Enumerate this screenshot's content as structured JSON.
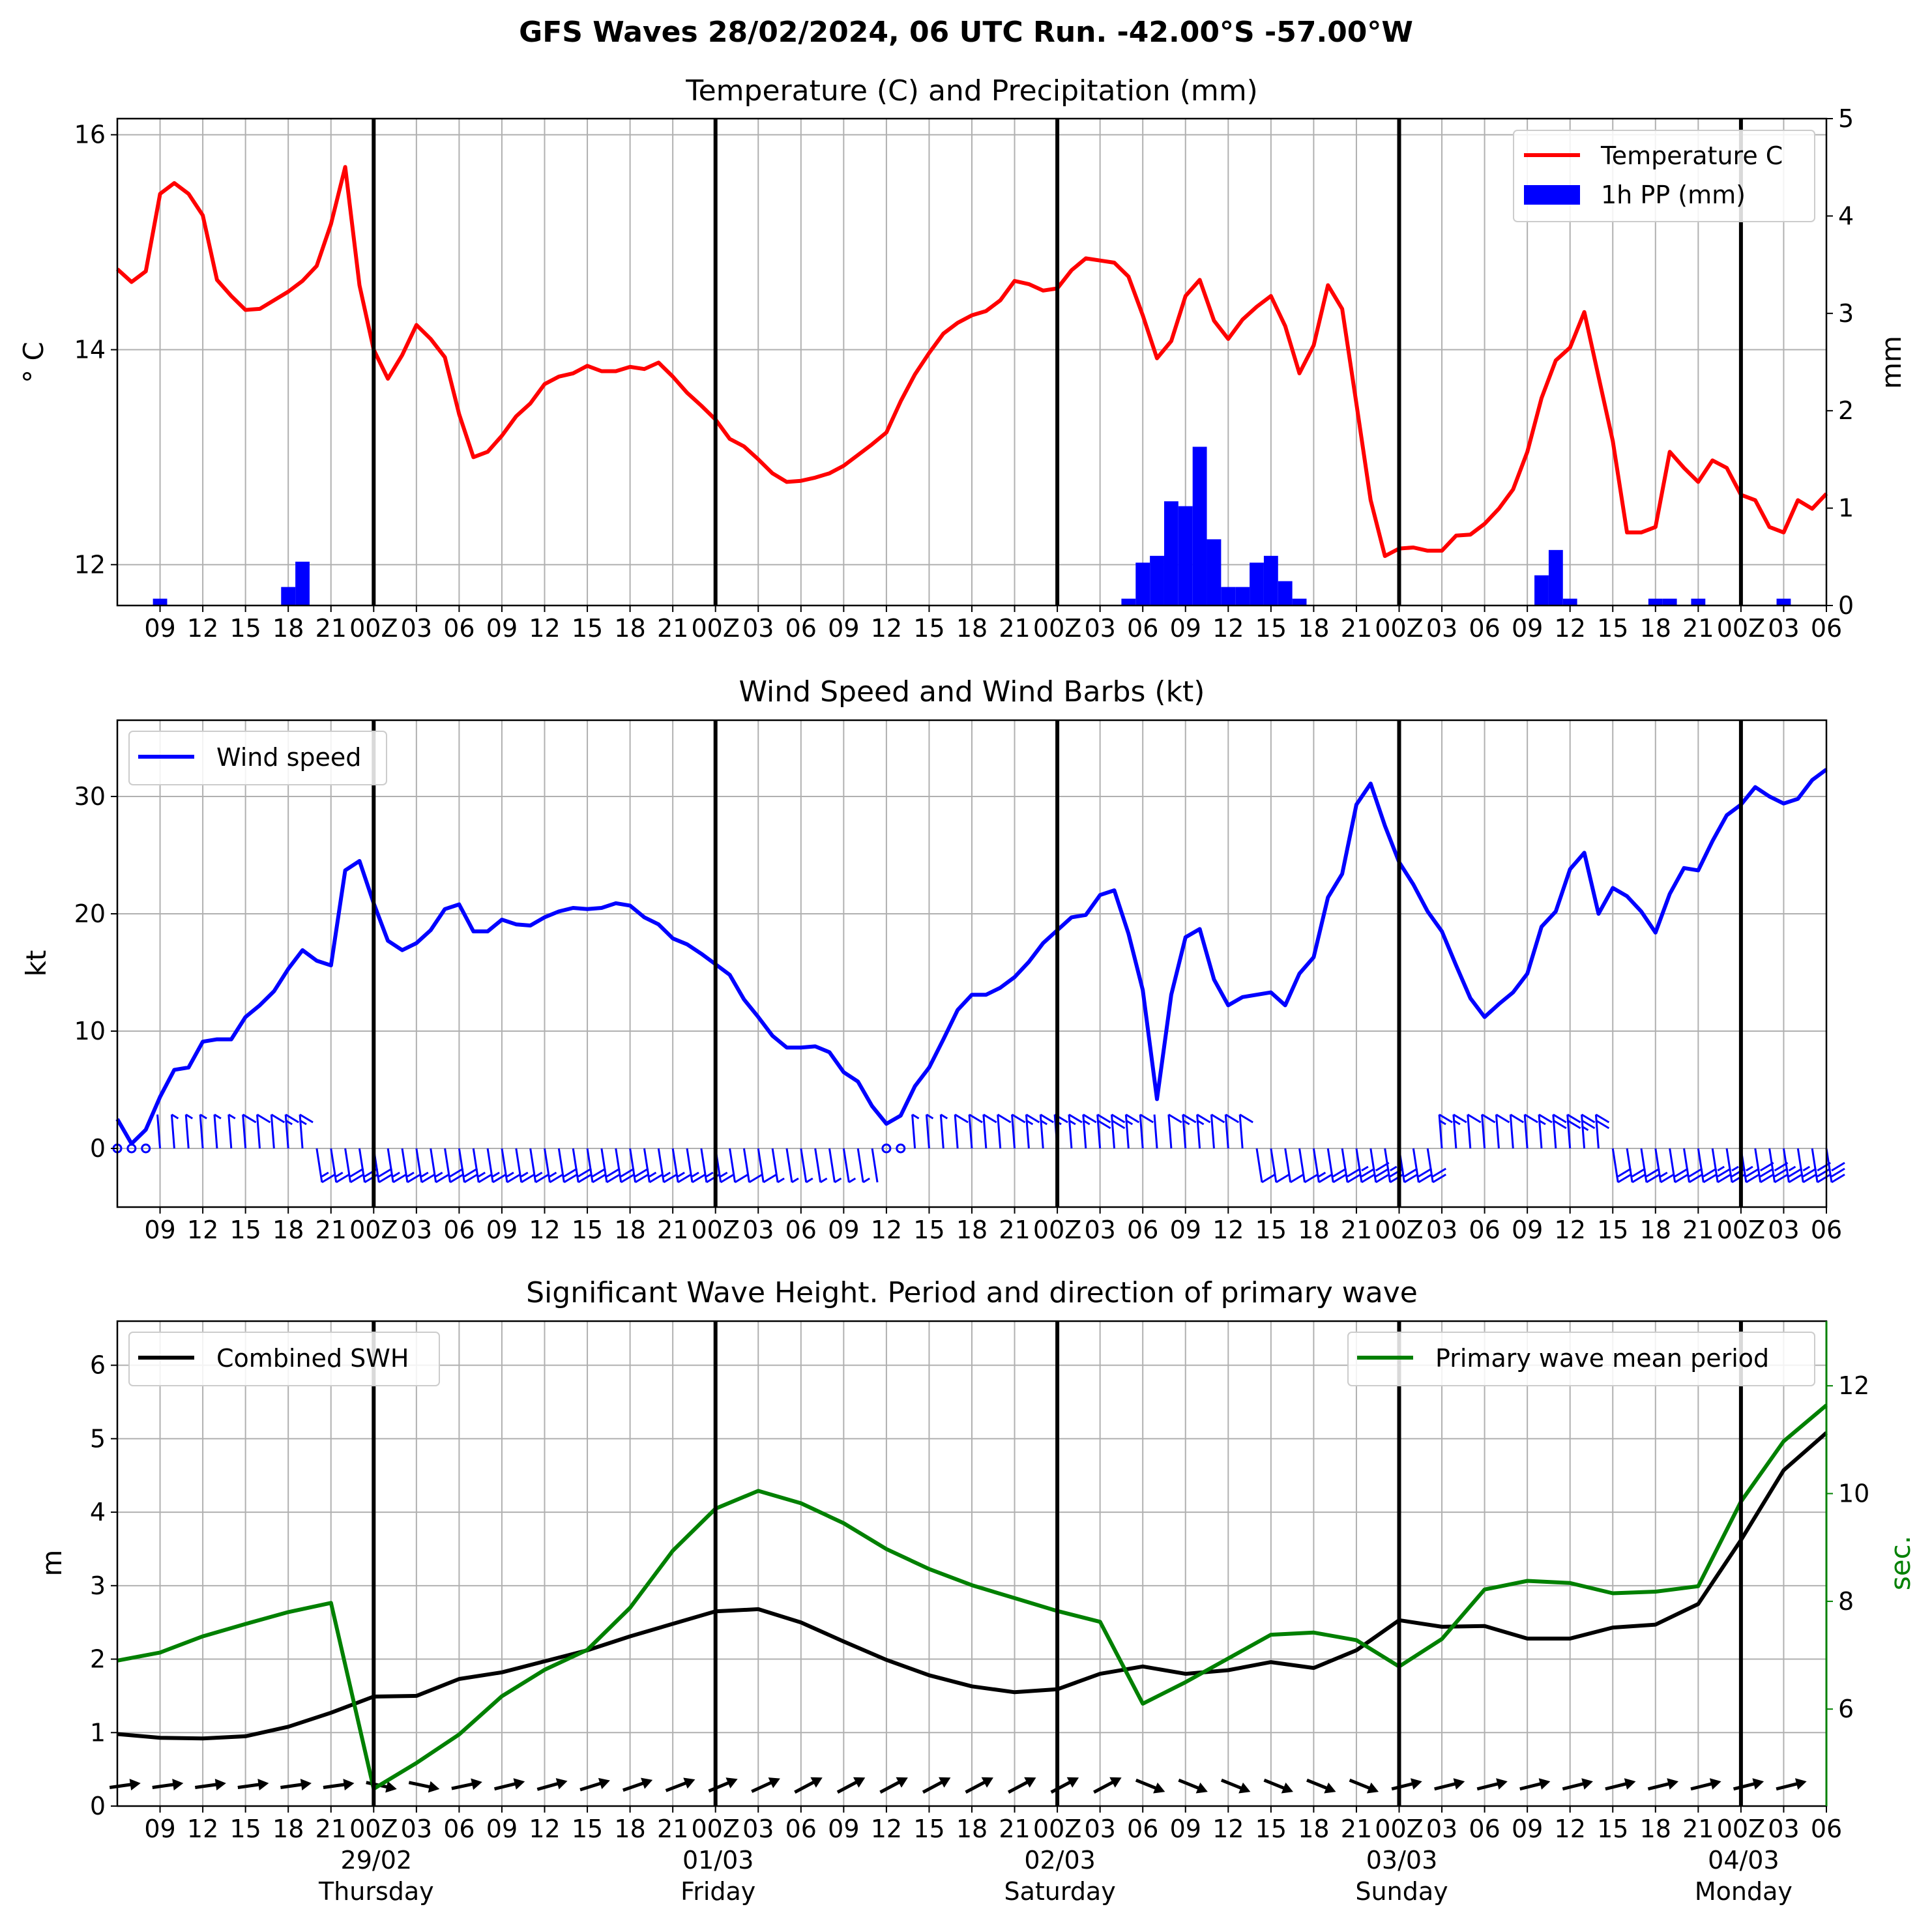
{
  "figure": {
    "title": "GFS Waves 28/02/2024, 06 UTC Run. -42.00°S -57.00°W"
  },
  "x_axis": {
    "tick_labels": [
      "09",
      "12",
      "15",
      "18",
      "21",
      "00Z",
      "03",
      "06",
      "09",
      "12",
      "15",
      "18",
      "21",
      "00Z",
      "03",
      "06",
      "09",
      "12",
      "15",
      "18",
      "21",
      "00Z",
      "03",
      "06",
      "09",
      "12",
      "15",
      "18",
      "21",
      "00Z",
      "03",
      "06",
      "09",
      "12",
      "15",
      "18",
      "21",
      "00Z",
      "03",
      "06"
    ],
    "day_dates": [
      "29/02",
      "01/03",
      "02/03",
      "03/03",
      "04/03"
    ],
    "day_names": [
      "Thursday",
      "Friday",
      "Saturday",
      "Sunday",
      "Monday"
    ]
  },
  "chart_data": [
    {
      "type": "line",
      "title": "Temperature (C) and Precipitation (mm)",
      "xlabel": "",
      "ylabel": "° C",
      "ylabel_right": "mm",
      "x_unit": "hours since 28/02/2024 06 UTC",
      "ylim": [
        11.62,
        16.15
      ],
      "ylim_right": [
        0,
        5
      ],
      "yticks": [
        12,
        14,
        16
      ],
      "yticks_right": [
        0,
        1,
        2,
        3,
        4,
        5
      ],
      "grid": true,
      "legend": "top-right",
      "series": [
        {
          "name": "Temperature C",
          "color": "#ff0000",
          "axis": "left",
          "x": [
            0,
            1,
            2,
            3,
            4,
            5,
            6,
            7,
            8,
            9,
            10,
            11,
            12,
            13,
            14,
            15,
            16,
            17,
            18,
            19,
            20,
            21,
            22,
            23,
            24,
            25,
            26,
            27,
            28,
            29,
            30,
            31,
            32,
            33,
            34,
            35,
            36,
            37,
            38,
            39,
            40,
            41,
            42,
            43,
            44,
            45,
            46,
            47,
            48,
            49,
            50,
            51,
            52,
            53,
            54,
            55,
            56,
            57,
            58,
            59,
            60,
            61,
            62,
            63,
            64,
            65,
            66,
            67,
            68,
            69,
            70,
            71,
            72,
            73,
            74,
            75,
            76,
            77,
            78,
            79,
            80,
            81,
            82,
            83,
            84,
            85,
            86,
            87,
            88,
            89,
            90,
            91,
            92,
            93,
            94,
            95,
            96,
            97,
            98,
            99,
            100,
            101,
            102,
            103,
            104,
            105,
            106,
            107,
            108,
            109,
            110,
            111,
            112,
            113,
            114,
            115,
            116,
            117,
            118,
            119,
            120
          ],
          "values": [
            14.75,
            14.63,
            14.73,
            15.45,
            15.55,
            15.45,
            15.25,
            14.65,
            14.5,
            14.37,
            14.38,
            14.46,
            14.54,
            14.64,
            14.78,
            15.17,
            15.7,
            14.6,
            14.0,
            13.73,
            13.95,
            14.23,
            14.1,
            13.93,
            13.4,
            13.0,
            13.05,
            13.2,
            13.38,
            13.5,
            13.68,
            13.75,
            13.78,
            13.85,
            13.8,
            13.8,
            13.84,
            13.82,
            13.88,
            13.75,
            13.6,
            13.48,
            13.35,
            13.17,
            13.1,
            12.98,
            12.85,
            12.77,
            12.78,
            12.81,
            12.85,
            12.92,
            13.02,
            13.12,
            13.23,
            13.52,
            13.77,
            13.97,
            14.15,
            14.25,
            14.32,
            14.36,
            14.46,
            14.64,
            14.61,
            14.55,
            14.57,
            14.74,
            14.85,
            14.83,
            14.81,
            14.68,
            14.32,
            13.92,
            14.08,
            14.5,
            14.65,
            14.27,
            14.1,
            14.28,
            14.4,
            14.5,
            14.22,
            13.78,
            14.04,
            14.6,
            14.38,
            13.5,
            12.6,
            12.08,
            12.15,
            12.16,
            12.13,
            12.13,
            12.27,
            12.28,
            12.38,
            12.52,
            12.7,
            13.05,
            13.55,
            13.9,
            14.02,
            14.35,
            13.75,
            13.15,
            12.3,
            12.3,
            12.35,
            13.05,
            12.9,
            12.77,
            12.97,
            12.9,
            12.65,
            12.6,
            12.35,
            12.3,
            12.6,
            12.52,
            12.66
          ]
        },
        {
          "name": "1h PP (mm)",
          "color": "#0000ff",
          "axis": "right",
          "type": "bar",
          "x": [
            3,
            12,
            13,
            71,
            72,
            73,
            74,
            75,
            76,
            77,
            78,
            79,
            80,
            81,
            82,
            83,
            84,
            85,
            100,
            101,
            102,
            108,
            109,
            111,
            117
          ],
          "values": [
            0.07,
            0.19,
            0.45,
            0.07,
            0.44,
            0.51,
            1.07,
            1.02,
            1.63,
            0.68,
            0.19,
            0.19,
            0.44,
            0.51,
            0.25,
            0.07,
            0.0,
            0.0,
            0.31,
            0.57,
            0.07,
            0.07,
            0.07,
            0.07,
            0.07
          ]
        }
      ]
    },
    {
      "type": "line",
      "title": "Wind Speed and Wind Barbs (kt)",
      "xlabel": "",
      "ylabel": "kt",
      "x_unit": "hours since 28/02/2024 06 UTC",
      "ylim": [
        -5,
        36.5
      ],
      "yticks": [
        0,
        10,
        20,
        30
      ],
      "grid": true,
      "legend": "top-left",
      "series": [
        {
          "name": "Wind speed",
          "color": "#0000ff",
          "x": [
            0,
            1,
            2,
            3,
            4,
            5,
            6,
            7,
            8,
            9,
            10,
            11,
            12,
            13,
            14,
            15,
            16,
            17,
            18,
            19,
            20,
            21,
            22,
            23,
            24,
            25,
            26,
            27,
            28,
            29,
            30,
            31,
            32,
            33,
            34,
            35,
            36,
            37,
            38,
            39,
            40,
            41,
            42,
            43,
            44,
            45,
            46,
            47,
            48,
            49,
            50,
            51,
            52,
            53,
            54,
            55,
            56,
            57,
            58,
            59,
            60,
            61,
            62,
            63,
            64,
            65,
            66,
            67,
            68,
            69,
            70,
            71,
            72,
            73,
            74,
            75,
            76,
            77,
            78,
            79,
            80,
            81,
            82,
            83,
            84,
            85,
            86,
            87,
            88,
            89,
            90,
            91,
            92,
            93,
            94,
            95,
            96,
            97,
            98,
            99,
            100,
            101,
            102,
            103,
            104,
            105,
            106,
            107,
            108,
            109,
            110,
            111,
            112,
            113,
            114,
            115,
            116,
            117,
            118,
            119,
            120
          ],
          "values": [
            2.5,
            0.4,
            1.6,
            4.4,
            6.7,
            6.9,
            9.1,
            9.3,
            9.3,
            11.2,
            12.2,
            13.4,
            15.3,
            16.9,
            16.0,
            15.6,
            23.7,
            24.5,
            20.9,
            17.7,
            16.9,
            17.5,
            18.6,
            20.4,
            20.8,
            18.5,
            18.5,
            19.5,
            19.1,
            19.0,
            19.7,
            20.2,
            20.5,
            20.4,
            20.5,
            20.9,
            20.7,
            19.7,
            19.1,
            17.9,
            17.4,
            16.6,
            15.7,
            14.8,
            12.7,
            11.2,
            9.6,
            8.6,
            8.6,
            8.7,
            8.2,
            6.5,
            5.7,
            3.6,
            2.1,
            2.8,
            5.3,
            6.9,
            9.3,
            11.8,
            13.1,
            13.1,
            13.7,
            14.6,
            15.9,
            17.5,
            18.6,
            19.7,
            19.9,
            21.6,
            22.0,
            18.3,
            13.5,
            4.2,
            13.1,
            18.0,
            18.7,
            14.4,
            12.2,
            12.9,
            13.1,
            13.3,
            12.2,
            14.9,
            16.3,
            21.4,
            23.4,
            29.3,
            31.1,
            27.5,
            24.4,
            22.5,
            20.2,
            18.5,
            15.6,
            12.8,
            11.2,
            12.3,
            13.3,
            14.9,
            18.9,
            20.2,
            23.8,
            25.2,
            20.0,
            22.2,
            21.5,
            20.2,
            18.4,
            21.7,
            23.9,
            23.7,
            26.2,
            28.4,
            29.3,
            30.8,
            30.0,
            29.4,
            29.8,
            31.4,
            32.3
          ]
        }
      ],
      "barbs": "wind barbs along y = 0 (direction and strength)"
    },
    {
      "type": "line",
      "title": "Significant Wave Height. Period and direction of primary wave",
      "xlabel": "",
      "ylabel": "m",
      "ylabel_right": "sec.",
      "x_unit": "hours since 28/02/2024 06 UTC",
      "ylim": [
        0,
        6.6
      ],
      "ylim_right": [
        4.2,
        13.2
      ],
      "yticks": [
        0,
        1,
        2,
        3,
        4,
        5,
        6
      ],
      "yticks_right": [
        6,
        8,
        10,
        12
      ],
      "grid": true,
      "legend": "top-left (SWH), top-right (period)",
      "series": [
        {
          "name": "Combined SWH",
          "color": "#000000",
          "axis": "left",
          "x": [
            0,
            3,
            6,
            9,
            12,
            15,
            18,
            21,
            24,
            27,
            30,
            33,
            36,
            39,
            42,
            45,
            48,
            51,
            54,
            57,
            60,
            63,
            66,
            69,
            72,
            75,
            78,
            81,
            84,
            87,
            90,
            93,
            96,
            99,
            102,
            105,
            108,
            111,
            114,
            117,
            120
          ],
          "values": [
            0.98,
            0.93,
            0.92,
            0.95,
            1.08,
            1.27,
            1.49,
            1.5,
            1.73,
            1.82,
            1.97,
            2.12,
            2.31,
            2.48,
            2.65,
            2.68,
            2.5,
            2.24,
            1.99,
            1.78,
            1.63,
            1.55,
            1.59,
            1.8,
            1.9,
            1.8,
            1.85,
            1.96,
            1.88,
            2.12,
            2.53,
            2.44,
            2.45,
            2.28,
            2.28,
            2.43,
            2.47,
            2.75,
            3.62,
            4.57,
            5.08
          ]
        },
        {
          "name": "Primary wave mean period",
          "color": "#008000",
          "axis": "right",
          "x": [
            0,
            3,
            6,
            9,
            12,
            15,
            18,
            21,
            24,
            27,
            30,
            33,
            36,
            39,
            42,
            45,
            48,
            51,
            54,
            57,
            60,
            63,
            66,
            69,
            72,
            75,
            78,
            81,
            84,
            87,
            90,
            93,
            96,
            99,
            102,
            105,
            108,
            111,
            114,
            117,
            120
          ],
          "values": [
            6.9,
            7.05,
            7.35,
            7.58,
            7.8,
            7.97,
            4.52,
            5.0,
            5.53,
            6.24,
            6.73,
            7.1,
            7.88,
            8.94,
            9.72,
            10.05,
            9.82,
            9.45,
            8.97,
            8.6,
            8.3,
            8.06,
            7.82,
            7.62,
            6.1,
            6.5,
            6.94,
            7.38,
            7.42,
            7.28,
            6.79,
            7.3,
            8.22,
            8.38,
            8.34,
            8.15,
            8.18,
            8.28,
            9.85,
            10.97,
            11.64
          ]
        }
      ],
      "arrows": "primary wave direction arrows along bottom"
    }
  ]
}
